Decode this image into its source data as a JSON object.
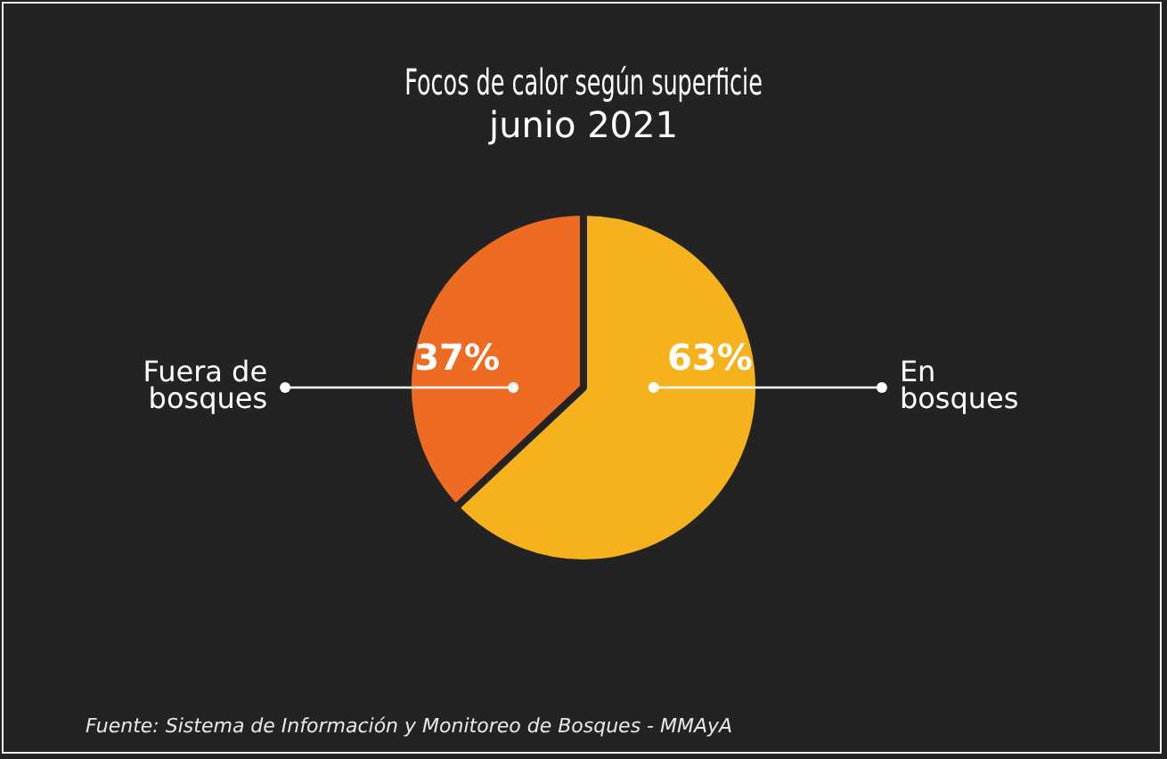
{
  "chart_data": {
    "type": "pie",
    "title": "Focos de calor según superficie",
    "subtitle": "junio 2021",
    "categories": [
      "En bosques",
      "Fuera de bosques"
    ],
    "values": [
      63,
      37
    ],
    "colors": [
      "#f6b21d",
      "#ee6b24"
    ],
    "value_labels": [
      "63%",
      "37%"
    ],
    "legend": false,
    "annotations": [
      "Fuente: Sistema de Información y Monitoreo de Bosques - MMAyA"
    ]
  }
}
